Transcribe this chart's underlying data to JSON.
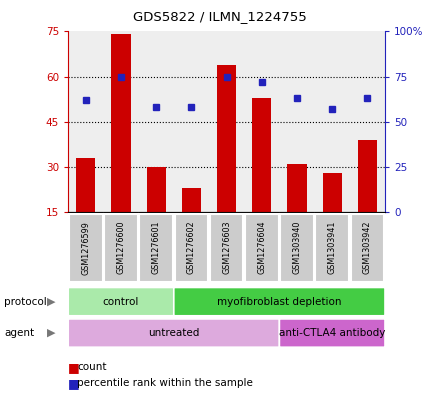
{
  "title": "GDS5822 / ILMN_1224755",
  "samples": [
    "GSM1276599",
    "GSM1276600",
    "GSM1276601",
    "GSM1276602",
    "GSM1276603",
    "GSM1276604",
    "GSM1303940",
    "GSM1303941",
    "GSM1303942"
  ],
  "counts": [
    33,
    74,
    30,
    23,
    64,
    53,
    31,
    28,
    39
  ],
  "percentiles": [
    62,
    75,
    58,
    58,
    75,
    72,
    63,
    57,
    63
  ],
  "ylim_left": [
    15,
    75
  ],
  "ylim_right": [
    0,
    100
  ],
  "yticks_left": [
    15,
    30,
    45,
    60,
    75
  ],
  "yticks_right": [
    0,
    25,
    50,
    75,
    100
  ],
  "ytick_labels_right": [
    "0",
    "25",
    "50",
    "75",
    "100%"
  ],
  "bar_color": "#cc0000",
  "dot_color": "#2222bb",
  "grid_color": "#000000",
  "protocol_groups": [
    {
      "label": "control",
      "start": 0,
      "end": 2,
      "color": "#aaeaaa"
    },
    {
      "label": "myofibroblast depletion",
      "start": 3,
      "end": 8,
      "color": "#44cc44"
    }
  ],
  "agent_groups": [
    {
      "label": "untreated",
      "start": 0,
      "end": 5,
      "color": "#ddaadd"
    },
    {
      "label": "anti-CTLA4 antibody",
      "start": 6,
      "end": 8,
      "color": "#cc66cc"
    }
  ],
  "legend_items": [
    {
      "label": "count",
      "color": "#cc0000"
    },
    {
      "label": "percentile rank within the sample",
      "color": "#2222bb"
    }
  ],
  "plot_bg_color": "#eeeeee",
  "left_axis_color": "#cc0000",
  "right_axis_color": "#2222bb",
  "sample_box_color": "#cccccc"
}
